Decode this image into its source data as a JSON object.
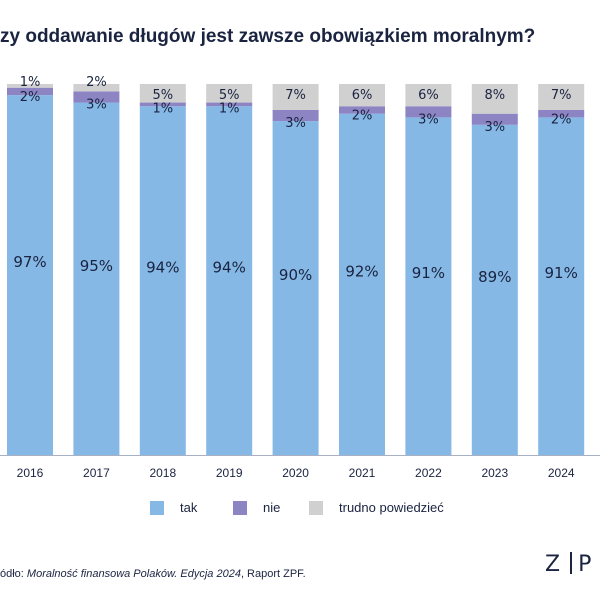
{
  "chart_data": {
    "type": "bar",
    "stacked": true,
    "title": "zy oddawanie długów jest zawsze obowiązkiem moralnym?",
    "categories": [
      "2016",
      "2017",
      "2018",
      "2019",
      "2020",
      "2021",
      "2022",
      "2023",
      "2024"
    ],
    "series": [
      {
        "name": "tak",
        "color": "#85b8e5",
        "values": [
          97,
          95,
          94,
          94,
          90,
          92,
          91,
          89,
          91
        ],
        "labels": [
          "97%",
          "95%",
          "94%",
          "94%",
          "90%",
          "92%",
          "91%",
          "89%",
          "91%"
        ]
      },
      {
        "name": "nie",
        "color": "#8d84c4",
        "values": [
          2,
          3,
          1,
          1,
          3,
          2,
          3,
          3,
          2
        ],
        "labels": [
          "2%",
          "3%",
          "1%",
          "1%",
          "3%",
          "2%",
          "3%",
          "3%",
          "2%"
        ]
      },
      {
        "name": "trudno powiedzieć",
        "color": "#d0d0d0",
        "values": [
          1,
          2,
          5,
          5,
          7,
          6,
          6,
          8,
          7
        ],
        "labels": [
          "1%",
          "2%",
          "5%",
          "5%",
          "7%",
          "6%",
          "6%",
          "8%",
          "7%"
        ]
      }
    ],
    "ylim": [
      0,
      100
    ],
    "grid": false,
    "legend_position": "bottom"
  },
  "source": {
    "prefix": "ódło: ",
    "publication": "Moralność finansowa Polaków. Edycja 2024",
    "suffix": ", Raport ZPF."
  },
  "logo": {
    "left": "Z",
    "right": "P"
  }
}
